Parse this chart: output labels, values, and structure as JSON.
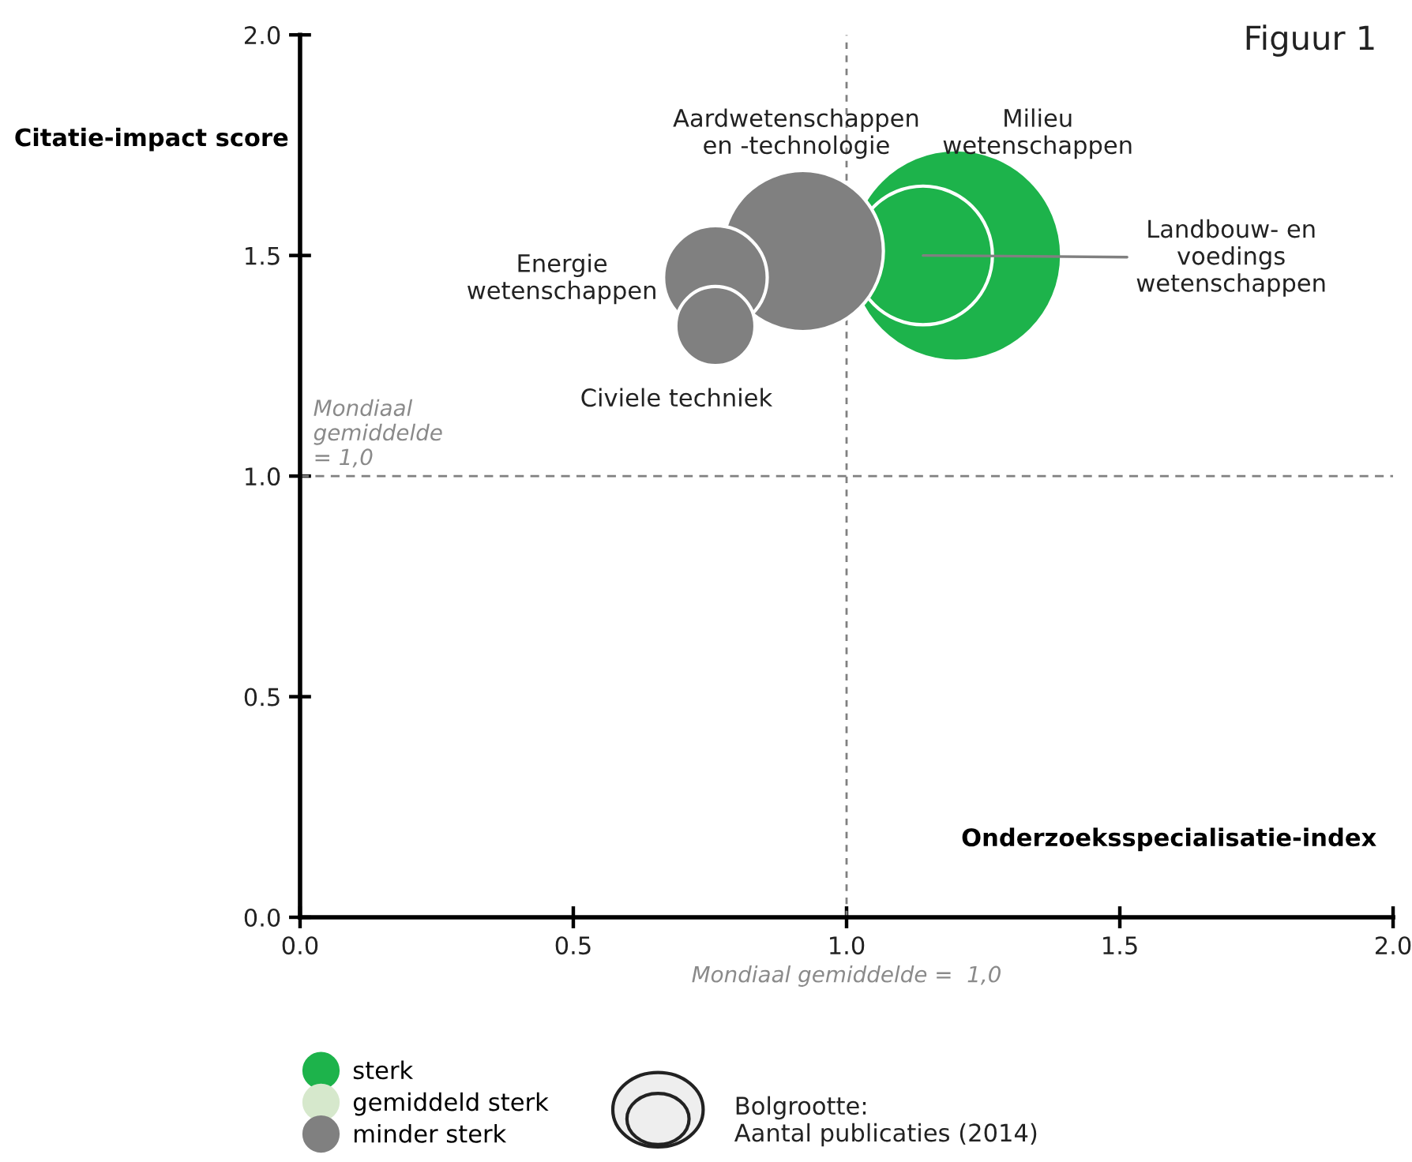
{
  "chart_data": {
    "type": "bubble",
    "title": "Figuur 1",
    "xlabel": "Onderzoeksspecialisatie-index",
    "ylabel": "Citatie-impact score",
    "xlim": [
      0,
      2
    ],
    "ylim": [
      0,
      2
    ],
    "xticks": [
      {
        "value": 0,
        "label": "0.0"
      },
      {
        "value": 0.5,
        "label": "0.5"
      },
      {
        "value": 1,
        "label": "1.0"
      },
      {
        "value": 1.5,
        "label": "1.5"
      },
      {
        "value": 2,
        "label": "2.0"
      }
    ],
    "yticks": [
      {
        "value": 0,
        "label": "0.0"
      },
      {
        "value": 0.5,
        "label": "0.5"
      },
      {
        "value": 1,
        "label": "1.0"
      },
      {
        "value": 1.5,
        "label": "1.5"
      },
      {
        "value": 2,
        "label": "2.0"
      }
    ],
    "series": [
      {
        "name": "sterk",
        "color": "#1db34b",
        "x": [
          1.2,
          1.14
        ],
        "values": [
          1.5,
          1.5
        ],
        "sizes": [
          1,
          0.43
        ]
      },
      {
        "name": "gemiddeld sterk",
        "color": "#d6e8cc"
      },
      {
        "name": "minder sterk",
        "color": "#808080",
        "x": [
          0.92,
          0.76,
          0.76
        ],
        "values": [
          1.51,
          1.45,
          1.34
        ],
        "sizes": [
          0.58,
          0.24,
          0.14
        ]
      }
    ],
    "ref_lines": [
      {
        "axis": "x",
        "value": 1,
        "label": "Mondiaal gemiddelde =  1,0",
        "line_style": "dashed",
        "color": "#808080"
      },
      {
        "axis": "y",
        "value": 1,
        "label": "Mondiaal\ngemiddelde\n= 1,0",
        "line_style": "dashed",
        "color": "#808080"
      }
    ],
    "annotations": [
      "Milieu\nwetenschappen",
      {
        "text": "Landbouw- en\nvoedings\nwetenschappen",
        "x": 1.14,
        "y": 1.5
      },
      "Aardwetenschappen\nen -technologie",
      "Energie\nwetenschappen",
      "Civiele techniek",
      "Bolgrootte:\nAantal publicaties (2014)"
    ],
    "legend": "bottom",
    "grid": false,
    "marker": "circle"
  }
}
